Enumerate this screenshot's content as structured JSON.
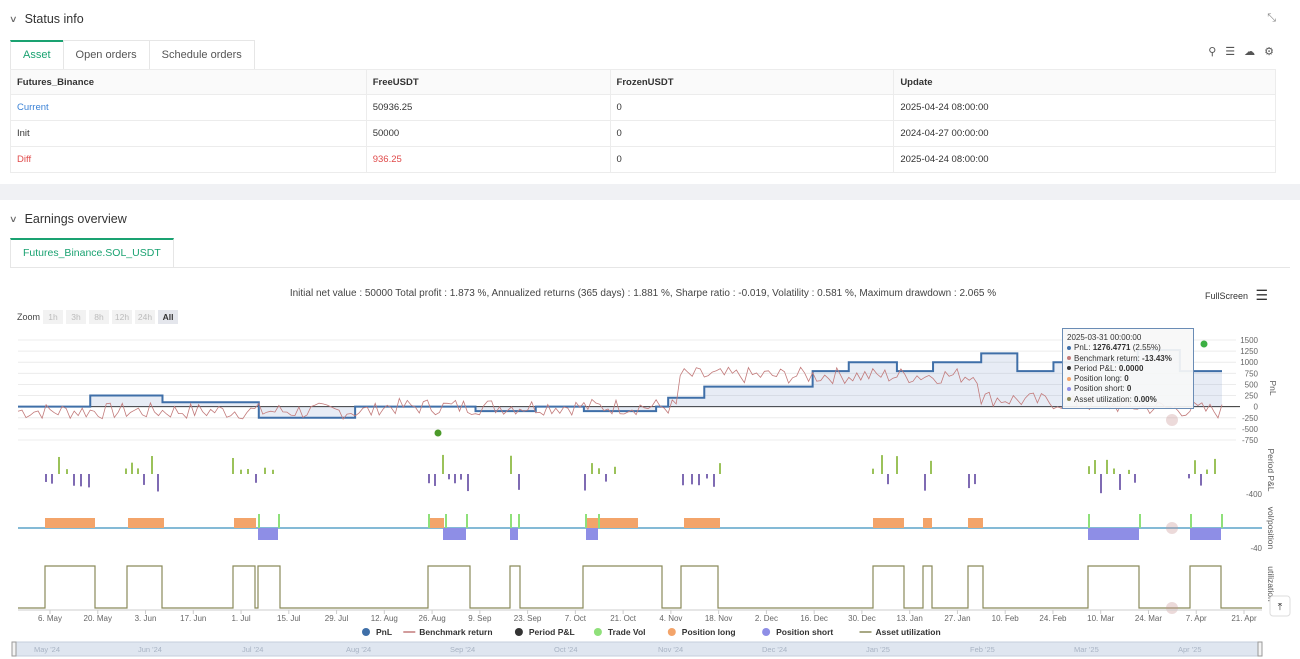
{
  "status": {
    "title": "Status info",
    "tabs": [
      "Asset",
      "Open orders",
      "Schedule orders"
    ],
    "columns": [
      "Futures_Binance",
      "FreeUSDT",
      "FrozenUSDT",
      "Update"
    ],
    "rows": [
      {
        "label": "Current",
        "free": "50936.25",
        "frozen": "0",
        "update": "2025-04-24 08:00:00"
      },
      {
        "label": "Init",
        "free": "50000",
        "frozen": "0",
        "update": "2024-04-27 00:00:00"
      },
      {
        "label": "Diff",
        "free": "936.25",
        "frozen": "0",
        "update": "2025-04-24 08:00:00"
      }
    ]
  },
  "earnings": {
    "title": "Earnings overview",
    "tab": "Futures_Binance.SOL_USDT",
    "summary": "Initial net value : 50000 Total profit : 1.873 %, Annualized returns (365 days) : 1.881 %, Sharpe ratio : -0.019, Volatility : 0.581 %, Maximum drawdown : 2.065 %",
    "fullscreen": "FullScreen",
    "zoom_label": "Zoom",
    "zoom_buttons": [
      "1h",
      "3h",
      "8h",
      "12h",
      "24h",
      "All"
    ]
  },
  "tooltip": {
    "date": "2025-03-31 00:00:00",
    "pnl_label": "PnL: ",
    "pnl_value": "1276.4771",
    "pnl_pct": " (2.55%)",
    "bench_label": "Benchmark return: ",
    "bench_value": "-13.43%",
    "period_label": "Period P&L: ",
    "period_value": "0.0000",
    "long_label": "Position long: ",
    "long_value": "0",
    "short_label": "Position short: ",
    "short_value": "0",
    "util_label": "Asset utilization: ",
    "util_value": "0.00%"
  },
  "chart_data": {
    "type": "line",
    "pnl_axis_ticks": [
      "1500",
      "1250",
      "1000",
      "750",
      "500",
      "250",
      "0",
      "-250",
      "-500",
      "-750"
    ],
    "axis_titles": [
      "PnL",
      "Period P&L",
      "vol/position",
      "utilization"
    ],
    "period_tick": "-400",
    "vol_tick": "-40",
    "x_ticks": [
      "6. May",
      "20. May",
      "3. Jun",
      "17. Jun",
      "1. Jul",
      "15. Jul",
      "29. Jul",
      "12. Aug",
      "26. Aug",
      "9. Sep",
      "23. Sep",
      "7. Oct",
      "21. Oct",
      "4. Nov",
      "18. Nov",
      "2. Dec",
      "16. Dec",
      "30. Dec",
      "13. Jan",
      "27. Jan",
      "10. Feb",
      "24. Feb",
      "10. Mar",
      "24. Mar",
      "7. Apr",
      "21. Apr"
    ],
    "navigator_ticks": [
      "May '24",
      "Jun '24",
      "Jul '24",
      "Aug '24",
      "Sep '24",
      "Oct '24",
      "Nov '24",
      "Dec '24",
      "Jan '25",
      "Feb '25",
      "Mar '25",
      "Apr '25"
    ],
    "legend": [
      {
        "name": "PnL",
        "color": "#3f6fa8",
        "shape": "dot"
      },
      {
        "name": "Benchmark return",
        "color": "#c27a7a",
        "shape": "line"
      },
      {
        "name": "Period P&L",
        "color": "#333333",
        "shape": "dot"
      },
      {
        "name": "Trade Vol",
        "color": "#8fe07a",
        "shape": "dot"
      },
      {
        "name": "Position long",
        "color": "#f3a46a",
        "shape": "dot"
      },
      {
        "name": "Position short",
        "color": "#8e8ee6",
        "shape": "dot"
      },
      {
        "name": "Asset utilization",
        "color": "#8a8a5a",
        "shape": "line"
      }
    ],
    "pnl_series": [
      [
        0,
        0
      ],
      [
        0.04,
        0
      ],
      [
        0.06,
        250
      ],
      [
        0.1,
        250
      ],
      [
        0.12,
        100
      ],
      [
        0.19,
        100
      ],
      [
        0.2,
        -250
      ],
      [
        0.27,
        -250
      ],
      [
        0.28,
        0
      ],
      [
        0.37,
        0
      ],
      [
        0.38,
        -100
      ],
      [
        0.41,
        -100
      ],
      [
        0.43,
        0
      ],
      [
        0.46,
        0
      ],
      [
        0.47,
        -100
      ],
      [
        0.51,
        -100
      ],
      [
        0.53,
        0
      ],
      [
        0.54,
        200
      ],
      [
        0.57,
        450
      ],
      [
        0.66,
        800
      ],
      [
        0.69,
        1000
      ],
      [
        0.73,
        800
      ],
      [
        0.76,
        1000
      ],
      [
        0.78,
        1000
      ],
      [
        0.8,
        1200
      ],
      [
        0.83,
        800
      ],
      [
        0.86,
        1000
      ],
      [
        0.9,
        1000
      ],
      [
        0.93,
        1276
      ]
    ],
    "benchmark_series_note": ""
  },
  "colors": {
    "accent": "#1aa271",
    "pnl": "#3f6fa8",
    "bench": "#c27a7a",
    "up": "#9bc25a",
    "down": "#7f6bb3",
    "long": "#f3a46a",
    "short": "#8e8ee6",
    "util": "#8a8a5a"
  }
}
